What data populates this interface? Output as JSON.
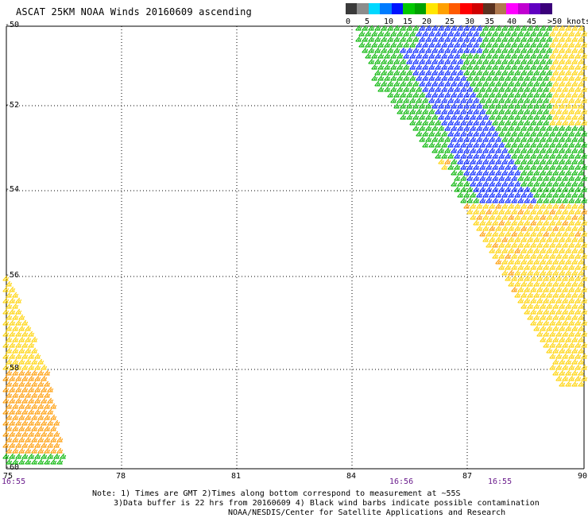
{
  "title": "ASCAT 25KM NOAA Winds 20160609 ascending",
  "colorbar": {
    "ticks": [
      "0",
      "5",
      "10",
      "15",
      "20",
      "25",
      "30",
      "35",
      "40",
      "45",
      ">50 knots"
    ],
    "colors": [
      "#3a3a3a",
      "#8c8c8c",
      "#00d8ff",
      "#007cff",
      "#0014ff",
      "#00c800",
      "#00a000",
      "#ffe600",
      "#ffa000",
      "#ff5a00",
      "#ff0000",
      "#d00000",
      "#5a3220",
      "#b07a50",
      "#ff00ff",
      "#c000d0",
      "#6000c0",
      "#3a007a"
    ]
  },
  "map": {
    "lat_labels": [
      "-50",
      "-52",
      "-54",
      "-56",
      "-58",
      "-60"
    ],
    "lon_labels": [
      "75",
      "78",
      "81",
      "84",
      "87",
      "90"
    ],
    "lon_range": [
      75,
      90
    ],
    "lat_range": [
      -60,
      -50
    ]
  },
  "times": [
    "16:55",
    "16:56",
    "16:55"
  ],
  "notes": [
    "Note: 1) Times are GMT 2)Times along bottom correspond to measurement at ~55S",
    "3)Data buffer is 22 hrs from 20160609 4) Black wind barbs indicate possible contamination",
    "NOAA/NESDIS/Center for Satellite Applications and Research"
  ]
}
